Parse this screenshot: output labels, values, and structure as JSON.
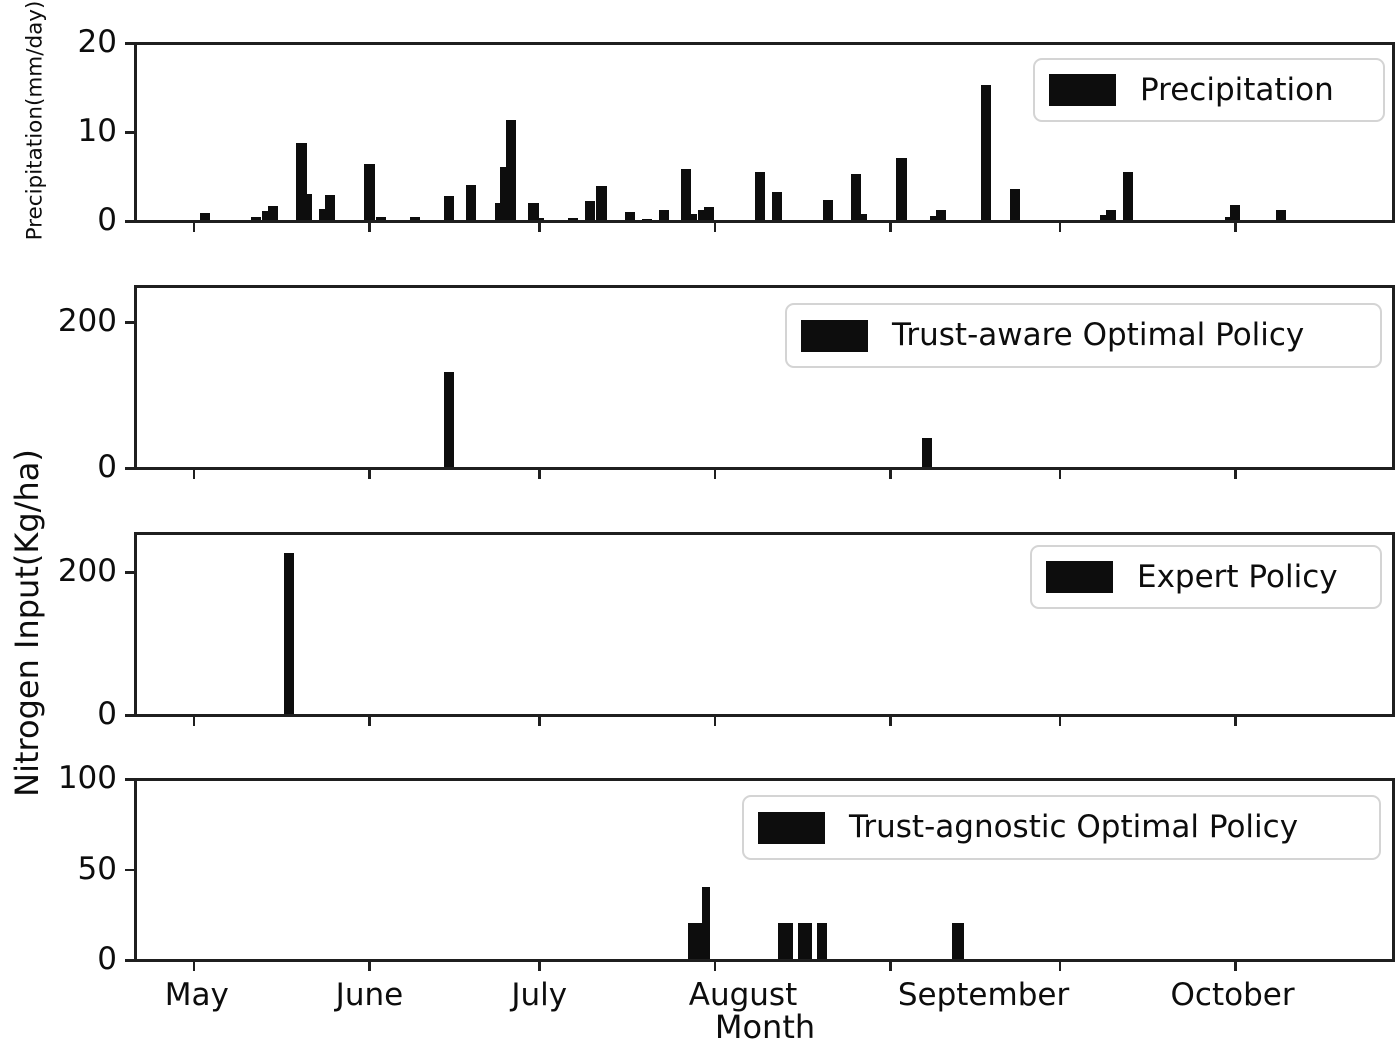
{
  "figure": {
    "background": "#ffffff",
    "bar_color": "#0d0d0d",
    "spine_color": "#1f1f1f"
  },
  "y_axis": {
    "shared_label": "Nitrogen Input(Kg/ha)"
  },
  "x_axis": {
    "label": "Month",
    "day_min": -10.6,
    "day_max": 212.2,
    "tick_days": [
      0,
      31,
      61,
      92,
      123,
      153,
      184
    ],
    "month_labels": [
      {
        "label": "May",
        "day": 0.5
      },
      {
        "label": "June",
        "day": 31
      },
      {
        "label": "July",
        "day": 61
      },
      {
        "label": "August",
        "day": 97
      },
      {
        "label": "September",
        "day": 139.5
      },
      {
        "label": "October",
        "day": 183.5
      }
    ]
  },
  "chart_data": [
    {
      "type": "bar",
      "panel": "precipitation",
      "legend": "Precipitation",
      "ylabel": "Precipitation(mm/day)",
      "ylim": [
        0,
        20
      ],
      "yticks": [
        0,
        10,
        20
      ],
      "x_unit": "days since May 1",
      "bars": [
        {
          "day": 2,
          "value": 0.8
        },
        {
          "day": 11,
          "value": 0.3
        },
        {
          "day": 13,
          "value": 1.0
        },
        {
          "day": 14,
          "value": 1.6
        },
        {
          "day": 19,
          "value": 8.7
        },
        {
          "day": 20,
          "value": 2.9
        },
        {
          "day": 23,
          "value": 1.2
        },
        {
          "day": 24,
          "value": 2.8
        },
        {
          "day": 31,
          "value": 6.3
        },
        {
          "day": 33,
          "value": 0.3
        },
        {
          "day": 39,
          "value": 0.3
        },
        {
          "day": 45,
          "value": 2.7
        },
        {
          "day": 49,
          "value": 3.9
        },
        {
          "day": 54,
          "value": 1.9
        },
        {
          "day": 55,
          "value": 6.0
        },
        {
          "day": 56,
          "value": 11.2
        },
        {
          "day": 60,
          "value": 1.9
        },
        {
          "day": 61,
          "value": 0.2
        },
        {
          "day": 67,
          "value": 0.2
        },
        {
          "day": 70,
          "value": 2.1
        },
        {
          "day": 72,
          "value": 3.8
        },
        {
          "day": 77,
          "value": 0.9
        },
        {
          "day": 80,
          "value": 0.1
        },
        {
          "day": 83,
          "value": 1.1
        },
        {
          "day": 87,
          "value": 5.7
        },
        {
          "day": 88,
          "value": 0.7
        },
        {
          "day": 90,
          "value": 1.1
        },
        {
          "day": 91,
          "value": 1.5
        },
        {
          "day": 100,
          "value": 5.4
        },
        {
          "day": 103,
          "value": 3.1
        },
        {
          "day": 112,
          "value": 2.3
        },
        {
          "day": 117,
          "value": 5.2
        },
        {
          "day": 118,
          "value": 0.7
        },
        {
          "day": 125,
          "value": 7.0
        },
        {
          "day": 131,
          "value": 0.4
        },
        {
          "day": 132,
          "value": 1.1
        },
        {
          "day": 140,
          "value": 15.2
        },
        {
          "day": 145,
          "value": 3.5
        },
        {
          "day": 161,
          "value": 0.6
        },
        {
          "day": 162,
          "value": 1.1
        },
        {
          "day": 165,
          "value": 5.4
        },
        {
          "day": 183,
          "value": 0.3
        },
        {
          "day": 184,
          "value": 1.7
        },
        {
          "day": 192,
          "value": 1.1
        }
      ]
    },
    {
      "type": "bar",
      "panel": "trust-aware-optimal-policy",
      "legend": "Trust-aware Optimal Policy",
      "ylim": [
        0,
        250
      ],
      "yticks": [
        0,
        200
      ],
      "x_unit": "days since May 1",
      "bars": [
        {
          "day": 45,
          "value": 130
        },
        {
          "day": 129.5,
          "value": 40
        }
      ]
    },
    {
      "type": "bar",
      "panel": "expert-policy",
      "legend": "Expert Policy",
      "ylim": [
        0,
        255
      ],
      "yticks": [
        0,
        200
      ],
      "x_unit": "days since May 1",
      "bars": [
        {
          "day": 16.8,
          "value": 225
        }
      ]
    },
    {
      "type": "bar",
      "panel": "trust-agnostic-optimal-policy",
      "legend": "Trust-agnostic Optimal Policy",
      "ylim": [
        0,
        100
      ],
      "yticks": [
        0,
        50,
        100
      ],
      "x_unit": "days since May 1",
      "bars": [
        {
          "day": 88.5,
          "value": 20,
          "w": 2.5
        },
        {
          "day": 90.5,
          "value": 40,
          "w": 1.5
        },
        {
          "day": 104.5,
          "value": 20,
          "w": 2.5
        },
        {
          "day": 108,
          "value": 20,
          "w": 2.5
        },
        {
          "day": 111,
          "value": 20,
          "w": 1.8
        },
        {
          "day": 135,
          "value": 20,
          "w": 2.0
        }
      ]
    }
  ]
}
